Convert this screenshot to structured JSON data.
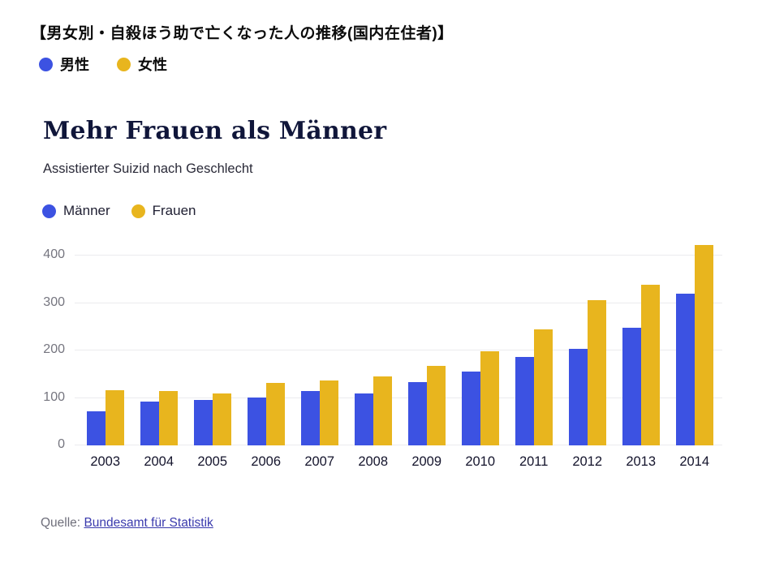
{
  "jp_header": {
    "title": "【男女別・自殺ほう助で亡くなった人の推移(国内在住者)】",
    "legend": [
      {
        "label": "男性",
        "color": "#3c52e2"
      },
      {
        "label": "女性",
        "color": "#e8b51e"
      }
    ]
  },
  "de_header": {
    "title": "Mehr Frauen als Männer",
    "subtitle": "Assistierter Suizid nach Geschlecht",
    "legend": [
      {
        "label": "Männer",
        "color": "#3c52e2"
      },
      {
        "label": "Frauen",
        "color": "#e8b51e"
      }
    ]
  },
  "source": {
    "prefix": "Quelle:",
    "link_text": "Bundesamt für Statistik"
  },
  "chart_data": {
    "type": "bar",
    "title": "Mehr Frauen als Männer",
    "subtitle": "Assistierter Suizid nach Geschlecht",
    "categories": [
      "2003",
      "2004",
      "2005",
      "2006",
      "2007",
      "2008",
      "2009",
      "2010",
      "2011",
      "2012",
      "2013",
      "2014"
    ],
    "series": [
      {
        "name": "Männer",
        "color": "#3c52e2",
        "values": [
          72,
          92,
          96,
          100,
          115,
          110,
          133,
          155,
          186,
          203,
          248,
          320
        ]
      },
      {
        "name": "Frauen",
        "color": "#e8b51e",
        "values": [
          117,
          114,
          109,
          132,
          137,
          145,
          167,
          198,
          245,
          306,
          339,
          422
        ]
      }
    ],
    "xlabel": "",
    "ylabel": "",
    "ylim": [
      0,
      430
    ],
    "yticks": [
      0,
      100,
      200,
      300,
      400
    ],
    "grid": true,
    "legend_position": "top-left",
    "colors": {
      "grid": "#ebebee",
      "y_tick_text": "#75757f",
      "x_tick_text": "#14142c"
    }
  }
}
